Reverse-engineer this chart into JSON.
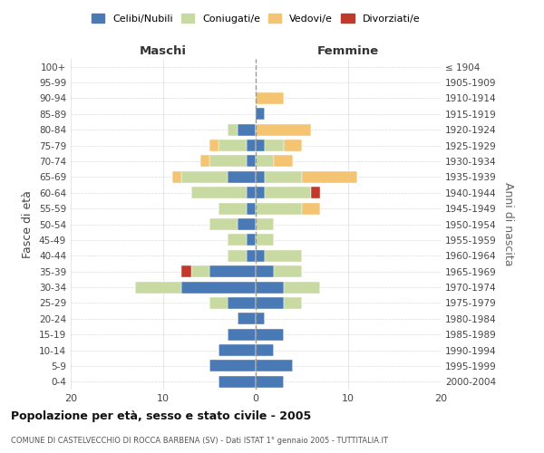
{
  "age_groups": [
    "0-4",
    "5-9",
    "10-14",
    "15-19",
    "20-24",
    "25-29",
    "30-34",
    "35-39",
    "40-44",
    "45-49",
    "50-54",
    "55-59",
    "60-64",
    "65-69",
    "70-74",
    "75-79",
    "80-84",
    "85-89",
    "90-94",
    "95-99",
    "100+"
  ],
  "birth_years": [
    "2000-2004",
    "1995-1999",
    "1990-1994",
    "1985-1989",
    "1980-1984",
    "1975-1979",
    "1970-1974",
    "1965-1969",
    "1960-1964",
    "1955-1959",
    "1950-1954",
    "1945-1949",
    "1940-1944",
    "1935-1939",
    "1930-1934",
    "1925-1929",
    "1920-1924",
    "1915-1919",
    "1910-1914",
    "1905-1909",
    "≤ 1904"
  ],
  "maschi": {
    "celibi": [
      4,
      5,
      4,
      3,
      2,
      3,
      8,
      5,
      1,
      1,
      2,
      1,
      1,
      3,
      1,
      1,
      2,
      0,
      0,
      0,
      0
    ],
    "coniugati": [
      0,
      0,
      0,
      0,
      0,
      2,
      5,
      2,
      2,
      2,
      3,
      3,
      6,
      5,
      4,
      3,
      1,
      0,
      0,
      0,
      0
    ],
    "vedovi": [
      0,
      0,
      0,
      0,
      0,
      0,
      0,
      0,
      0,
      0,
      0,
      0,
      0,
      1,
      1,
      1,
      0,
      0,
      0,
      0,
      0
    ],
    "divorziati": [
      0,
      0,
      0,
      0,
      0,
      0,
      0,
      1,
      0,
      0,
      0,
      0,
      0,
      0,
      0,
      0,
      0,
      0,
      0,
      0,
      0
    ]
  },
  "femmine": {
    "nubili": [
      3,
      4,
      2,
      3,
      1,
      3,
      3,
      2,
      1,
      0,
      0,
      0,
      1,
      1,
      0,
      1,
      0,
      1,
      0,
      0,
      0
    ],
    "coniugate": [
      0,
      0,
      0,
      0,
      0,
      2,
      4,
      3,
      4,
      2,
      2,
      5,
      5,
      4,
      2,
      2,
      0,
      0,
      0,
      0,
      0
    ],
    "vedove": [
      0,
      0,
      0,
      0,
      0,
      0,
      0,
      0,
      0,
      0,
      0,
      2,
      0,
      6,
      2,
      2,
      6,
      0,
      3,
      0,
      0
    ],
    "divorziate": [
      0,
      0,
      0,
      0,
      0,
      0,
      0,
      0,
      0,
      0,
      0,
      0,
      1,
      0,
      0,
      0,
      0,
      0,
      0,
      0,
      0
    ]
  },
  "colors": {
    "celibi": "#4a7ab5",
    "coniugati": "#c8daa2",
    "vedovi": "#f5c472",
    "divorziati": "#c0392b"
  },
  "title": "Popolazione per età, sesso e stato civile - 2005",
  "subtitle": "COMUNE DI CASTELVECCHIO DI ROCCA BARBENA (SV) - Dati ISTAT 1° gennaio 2005 - TUTTITALIA.IT",
  "ylabel_left": "Fasce di età",
  "ylabel_right": "Anni di nascita",
  "xlabel_maschi": "Maschi",
  "xlabel_femmine": "Femmine",
  "xlim": 20,
  "bg_color": "#ffffff",
  "grid_color": "#cccccc",
  "legend_labels": [
    "Celibi/Nubili",
    "Coniugati/e",
    "Vedovi/e",
    "Divorziati/e"
  ]
}
